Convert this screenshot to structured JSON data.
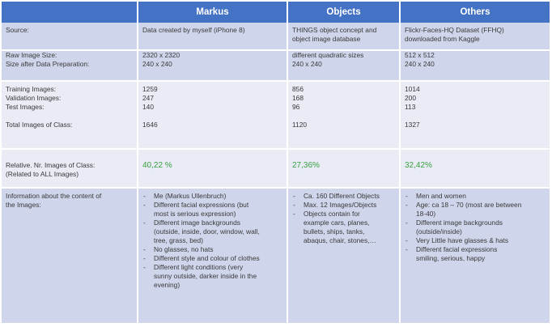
{
  "headers": [
    "",
    "Markus",
    "Objects",
    "Others"
  ],
  "source": {
    "label": "Source:",
    "markus": [
      "Data created by myself (iPhone 8)"
    ],
    "objects": [
      "THINGS object concept and",
      "object image database"
    ],
    "others": [
      "Flickr-Faces-HQ Dataset (FFHQ)",
      "downloaded from Kaggle"
    ]
  },
  "size": {
    "label_raw": "Raw Image Size:",
    "label_prep": "Size after Data Preparation:",
    "markus": [
      "2320 x 2320",
      "240 x 240"
    ],
    "objects": [
      "different quadratic sizes",
      "240 x 240"
    ],
    "others": [
      "512 x 512",
      "240 x 240"
    ]
  },
  "counts": {
    "labels": [
      "Training Images:",
      "Validation Images:",
      "Test Images:"
    ],
    "total_label": "Total Images of Class:",
    "markus": [
      "1259",
      "247",
      "140"
    ],
    "objects": [
      "856",
      "168",
      "96"
    ],
    "others": [
      "1014",
      "200",
      "113"
    ],
    "totals": [
      "1646",
      "1120",
      "1327"
    ]
  },
  "relative": {
    "label": [
      "Relative. Nr. Images of Class:",
      "(Related to ALL Images)"
    ],
    "values": [
      "40,22 %",
      "27,36%",
      "32,42%"
    ],
    "color": "#3aa043"
  },
  "info": {
    "label": [
      "Information about the content of",
      "the Images:"
    ],
    "markus": [
      [
        "Me (Markus Ullenbruch)"
      ],
      [
        "Different facial expressions (but",
        "most is serious expression)"
      ],
      [
        "Different image backgrounds",
        "(outside, inside, door, window, wall,",
        "tree, grass, bed)"
      ],
      [
        "No glasses, no hats"
      ],
      [
        "Different style and colour of clothes"
      ],
      [
        "Different light conditions (very",
        "sunny outside, darker inside in the",
        "evening)"
      ]
    ],
    "objects": [
      [
        "Ca. 160 Different Objects"
      ],
      [
        "Max. 12 Images/Objects"
      ],
      [
        "Objects contain for",
        "example cars, planes,",
        "bullets, ships, tanks,",
        "abaqus, chair, stones,…"
      ]
    ],
    "others": [
      [
        "Men and women"
      ],
      [
        "Age: ca 18 – 70 (most are between",
        "18-40)"
      ],
      [
        "Different image backgrounds",
        "(outside/inside)"
      ],
      [
        "Very Little have glasses & hats"
      ],
      [
        "Different facial expressions",
        "smiling, serious, happy"
      ]
    ]
  },
  "colors": {
    "header": "#4472c4",
    "band_dark": "#cfd5ea",
    "band_light": "#e9ebf5"
  }
}
